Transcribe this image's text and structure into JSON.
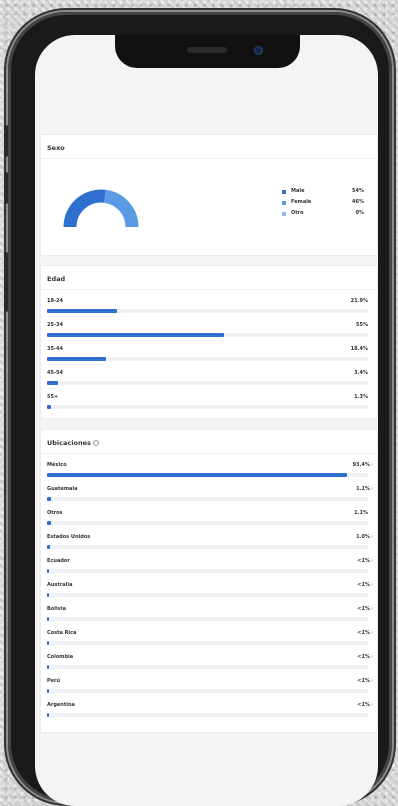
{
  "sexo": {
    "title": "Sexo",
    "items": [
      {
        "label": "Male",
        "value": "54%",
        "fraction": 0.54,
        "color": "#2f6fd0"
      },
      {
        "label": "Female",
        "value": "46%",
        "fraction": 0.46,
        "color": "#5b9be6"
      },
      {
        "label": "Otro",
        "value": "0%",
        "fraction": 0.0,
        "color": "#8cc0ee"
      }
    ]
  },
  "edad": {
    "title": "Edad",
    "rows": [
      {
        "label": "18-24",
        "value": "21.9%",
        "fraction": 0.219
      },
      {
        "label": "25-34",
        "value": "55%",
        "fraction": 0.55
      },
      {
        "label": "35-44",
        "value": "18.4%",
        "fraction": 0.184
      },
      {
        "label": "45-54",
        "value": "3.4%",
        "fraction": 0.034
      },
      {
        "label": "55+",
        "value": "1.3%",
        "fraction": 0.013
      }
    ]
  },
  "ubicaciones": {
    "title": "Ubicaciones",
    "rows": [
      {
        "label": "México",
        "value": "93.4%",
        "fraction": 0.934,
        "arrow": true
      },
      {
        "label": "Guatemala",
        "value": "1.1%",
        "fraction": 0.011,
        "arrow": true
      },
      {
        "label": "Otros",
        "value": "1.1%",
        "fraction": 0.011,
        "arrow": false
      },
      {
        "label": "Estados Unidos",
        "value": "1.0%",
        "fraction": 0.01,
        "arrow": true
      },
      {
        "label": "Ecuador",
        "value": "<1%",
        "fraction": 0.005,
        "arrow": true
      },
      {
        "label": "Australia",
        "value": "<1%",
        "fraction": 0.005,
        "arrow": true
      },
      {
        "label": "Bolivia",
        "value": "<1%",
        "fraction": 0.005,
        "arrow": true
      },
      {
        "label": "Costa Rica",
        "value": "<1%",
        "fraction": 0.005,
        "arrow": true
      },
      {
        "label": "Colombia",
        "value": "<1%",
        "fraction": 0.005,
        "arrow": true
      },
      {
        "label": "Perú",
        "value": "<1%",
        "fraction": 0.005,
        "arrow": true
      },
      {
        "label": "Argentina",
        "value": "<1%",
        "fraction": 0.005,
        "arrow": true
      }
    ]
  },
  "colors": {
    "bar": "#2f6fd0",
    "track": "#eef0f3"
  },
  "icons": {
    "info": "info-circle-icon",
    "chevron": "chevron-right-icon"
  }
}
